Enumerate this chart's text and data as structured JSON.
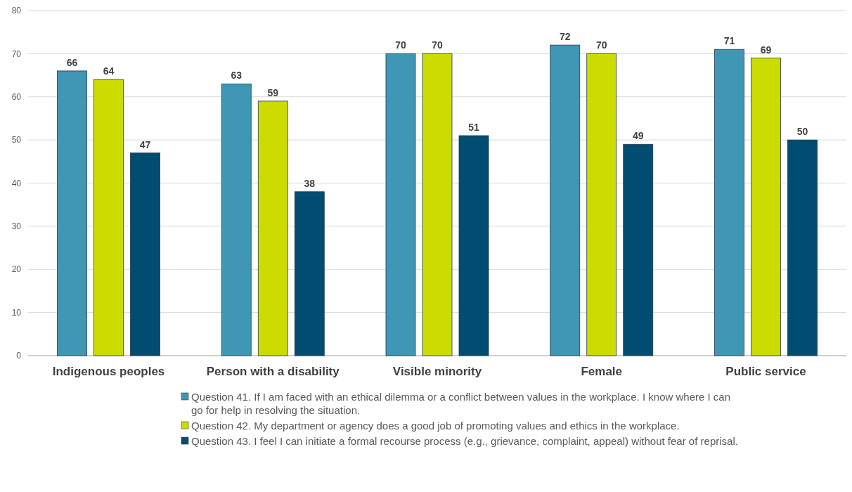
{
  "chart_data": {
    "type": "bar",
    "categories": [
      "Indigenous peoples",
      "Person with a disability",
      "Visible minority",
      "Female",
      "Public service"
    ],
    "series": [
      {
        "name": "Question 41. If I am faced with an ethical dilemma or a conflict between values in the workplace. I know where I can go for help in resolving the situation.",
        "color": "#3f97b5",
        "values": [
          66,
          63,
          70,
          72,
          71
        ]
      },
      {
        "name": "Question 42. My department or agency does a good job of promoting values and ethics in the workplace.",
        "color": "#cddc00",
        "values": [
          64,
          59,
          70,
          70,
          69
        ]
      },
      {
        "name": "Question 43. I feel I can initiate a formal recourse process (e.g., grievance, complaint, appeal) without fear of reprisal.",
        "color": "#004d71",
        "values": [
          47,
          38,
          51,
          49,
          50
        ]
      }
    ],
    "ylim": [
      0,
      80
    ],
    "yticks": [
      0,
      10,
      20,
      30,
      40,
      50,
      60,
      70,
      80
    ],
    "grid": "y",
    "legend": "bottom",
    "data_labels": true
  }
}
